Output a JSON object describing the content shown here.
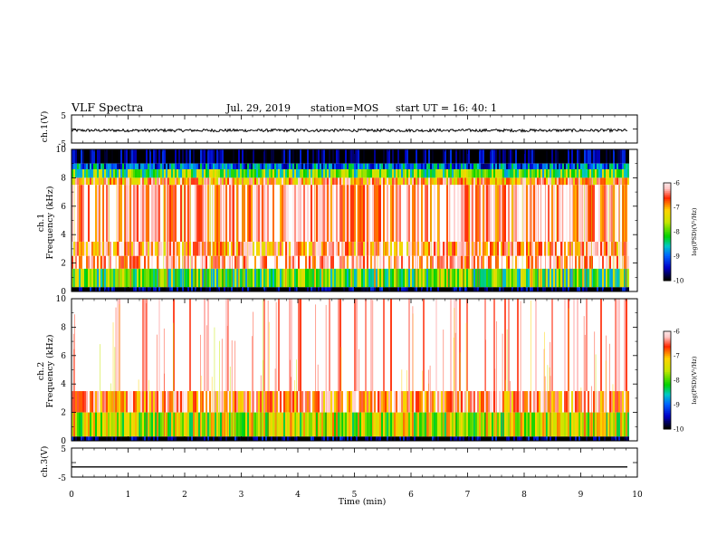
{
  "header": {
    "title": "VLF Spectra",
    "date": "Jul. 29, 2019",
    "station": "station=MOS",
    "start": "start UT =  16: 40: 1"
  },
  "colors": {
    "spec_scale": [
      "#000000",
      "#0000c8",
      "#0064ff",
      "#00c8c8",
      "#00d200",
      "#c8e600",
      "#ffd200",
      "#ff2800",
      "#ffc8c8",
      "#ffffff"
    ]
  },
  "chart_data": [
    {
      "type": "line",
      "panel": "ch1-waveform",
      "ylabel": "ch.1(V)",
      "ylim": [
        -5,
        5
      ],
      "yticks": [
        "5",
        "-5"
      ],
      "xlim": [
        0,
        10
      ],
      "series": [
        {
          "level_V": -0.5
        }
      ]
    },
    {
      "type": "heatmap",
      "panel": "ch1-spectrogram",
      "ylabel": "ch.1\nFrequency (kHz)",
      "ylim": [
        0,
        10
      ],
      "yticks": [
        "0",
        "2",
        "4",
        "6",
        "8",
        "10"
      ],
      "xlim": [
        0,
        9.83
      ],
      "colorbar": {
        "label": "log(PSD)(V²/Hz)",
        "range": [
          -10,
          -6
        ],
        "ticks": [
          "-6",
          "-7",
          "-8",
          "-9",
          "-10"
        ]
      },
      "bands_kHz": [
        {
          "from": 9.0,
          "to": 10.0,
          "level": -10.0
        },
        {
          "from": 8.6,
          "to": 9.0,
          "level": -9.0
        },
        {
          "from": 8.0,
          "to": 8.6,
          "level": -8.0
        },
        {
          "from": 7.5,
          "to": 8.0,
          "level": -6.8
        },
        {
          "from": 3.5,
          "to": 7.5,
          "level": -6.2
        },
        {
          "from": 2.5,
          "to": 3.5,
          "level": -6.6
        },
        {
          "from": 1.6,
          "to": 2.5,
          "level": -6.2
        },
        {
          "from": 0.3,
          "to": 1.6,
          "level": -8.0
        },
        {
          "from": 0.0,
          "to": 0.3,
          "level": -10.0
        }
      ]
    },
    {
      "type": "heatmap",
      "panel": "ch2-spectrogram",
      "ylabel": "ch.2\nFrequency (kHz)",
      "ylim": [
        0,
        10
      ],
      "yticks": [
        "0",
        "2",
        "4",
        "6",
        "8",
        "10"
      ],
      "xlim": [
        0,
        9.83
      ],
      "colorbar": {
        "label": "log(PSD)(V²/Hz)",
        "range": [
          -10,
          -6
        ],
        "ticks": [
          "-6",
          "-7",
          "-8",
          "-9",
          "-10"
        ]
      },
      "bands_kHz": [
        {
          "from": 3.5,
          "to": 10.0,
          "level": -5.8
        },
        {
          "from": 2.0,
          "to": 3.5,
          "level": -6.5
        },
        {
          "from": 0.3,
          "to": 2.0,
          "level": -7.6
        },
        {
          "from": 0.0,
          "to": 0.3,
          "level": -10.0
        }
      ]
    },
    {
      "type": "line",
      "panel": "ch3-waveform",
      "ylabel": "ch.3(V)",
      "ylim": [
        -5,
        5
      ],
      "yticks": [
        "5",
        "-5"
      ],
      "xlim": [
        0,
        10
      ],
      "series": [
        {
          "level_V": -1.5
        }
      ]
    }
  ],
  "xaxis": {
    "label": "Time (min)",
    "ticks": [
      "0",
      "1",
      "2",
      "3",
      "4",
      "5",
      "6",
      "7",
      "8",
      "9",
      "10"
    ]
  }
}
